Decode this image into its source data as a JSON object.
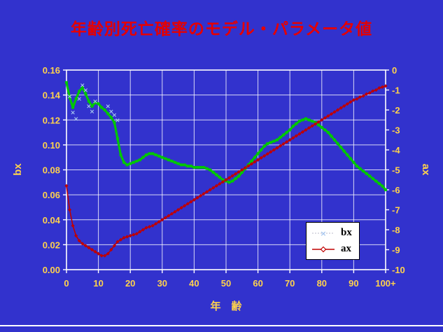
{
  "chart_data": {
    "type": "line",
    "title": "年齢別死亡確率のモデル・パラメータ値",
    "xlabel": "年　齢",
    "ylabel_left": "bx",
    "ylabel_right": "ax",
    "x_range": [
      0,
      100
    ],
    "y_left_range": [
      0,
      0.16
    ],
    "y_right_range": [
      -10,
      0
    ],
    "x_tick_labels": [
      "0",
      "10",
      "20",
      "30",
      "40",
      "50",
      "60",
      "70",
      "80",
      "90",
      "100+"
    ],
    "y_left_tick_labels": [
      "0.16",
      "0.14",
      "0.12",
      "0.10",
      "0.08",
      "0.06",
      "0.04",
      "0.02",
      "0.00"
    ],
    "y_right_tick_labels": [
      "0",
      "-1",
      "-2",
      "-3",
      "-4",
      "-5",
      "-6",
      "-7",
      "-8",
      "-9",
      "-10"
    ],
    "grid": true,
    "legend_position": "inside-bottom-right",
    "legend": [
      {
        "label": "bx"
      },
      {
        "label": "ax"
      }
    ],
    "colors": {
      "background": "#3232cd",
      "title": "#e60000",
      "labels": "#ffd24d",
      "grid": "#ffffff",
      "bx": "#00c800",
      "bx_marker": "#a8c8f0",
      "ax": "#c00000",
      "legend_bg": "#ffffff",
      "legend_border": "#000000"
    },
    "series": [
      {
        "name": "bx",
        "axis": "left",
        "marker": "square",
        "x_start": 0,
        "x_step": 1,
        "values": [
          0.15,
          0.138,
          0.13,
          0.137,
          0.143,
          0.146,
          0.141,
          0.135,
          0.131,
          0.134,
          0.133,
          0.13,
          0.128,
          0.125,
          0.122,
          0.118,
          0.105,
          0.092,
          0.086,
          0.084,
          0.085,
          0.086,
          0.087,
          0.088,
          0.09,
          0.092,
          0.093,
          0.093,
          0.092,
          0.091,
          0.09,
          0.089,
          0.088,
          0.087,
          0.086,
          0.085,
          0.084,
          0.084,
          0.083,
          0.083,
          0.082,
          0.082,
          0.082,
          0.082,
          0.081,
          0.08,
          0.078,
          0.076,
          0.074,
          0.072,
          0.071,
          0.07,
          0.071,
          0.073,
          0.075,
          0.078,
          0.081,
          0.084,
          0.087,
          0.09,
          0.093,
          0.096,
          0.099,
          0.101,
          0.102,
          0.103,
          0.104,
          0.106,
          0.108,
          0.11,
          0.112,
          0.115,
          0.117,
          0.119,
          0.12,
          0.121,
          0.12,
          0.119,
          0.118,
          0.116,
          0.114,
          0.112,
          0.11,
          0.107,
          0.104,
          0.101,
          0.098,
          0.095,
          0.092,
          0.089,
          0.086,
          0.083,
          0.081,
          0.079,
          0.077,
          0.075,
          0.073,
          0.071,
          0.069,
          0.067,
          0.064
        ]
      },
      {
        "name": "ax",
        "axis": "right",
        "marker": "diamond",
        "x_start": 0,
        "x_step": 1,
        "values": [
          -5.8,
          -7.0,
          -7.8,
          -8.3,
          -8.55,
          -8.7,
          -8.8,
          -8.9,
          -9.0,
          -9.1,
          -9.2,
          -9.3,
          -9.3,
          -9.2,
          -9.0,
          -8.8,
          -8.6,
          -8.5,
          -8.4,
          -8.35,
          -8.3,
          -8.25,
          -8.2,
          -8.1,
          -8.0,
          -7.9,
          -7.85,
          -7.8,
          -7.7,
          -7.6,
          -7.5,
          -7.4,
          -7.3,
          -7.2,
          -7.1,
          -7.0,
          -6.9,
          -6.8,
          -6.7,
          -6.6,
          -6.5,
          -6.4,
          -6.3,
          -6.2,
          -6.1,
          -6.0,
          -5.9,
          -5.8,
          -5.7,
          -5.6,
          -5.5,
          -5.4,
          -5.3,
          -5.2,
          -5.1,
          -5.0,
          -4.9,
          -4.8,
          -4.7,
          -4.6,
          -4.5,
          -4.4,
          -4.3,
          -4.2,
          -4.1,
          -4.0,
          -3.9,
          -3.8,
          -3.7,
          -3.6,
          -3.5,
          -3.4,
          -3.3,
          -3.2,
          -3.1,
          -3.0,
          -2.9,
          -2.8,
          -2.7,
          -2.6,
          -2.5,
          -2.4,
          -2.3,
          -2.2,
          -2.1,
          -2.0,
          -1.9,
          -1.8,
          -1.7,
          -1.6,
          -1.5,
          -1.45,
          -1.35,
          -1.3,
          -1.2,
          -1.15,
          -1.05,
          -1.0,
          -0.9,
          -0.85,
          -0.8
        ]
      }
    ],
    "bx_scatter_markers": [
      {
        "age": 1,
        "value": 0.139
      },
      {
        "age": 2,
        "value": 0.126
      },
      {
        "age": 3,
        "value": 0.121
      },
      {
        "age": 4,
        "value": 0.137
      },
      {
        "age": 5,
        "value": 0.148
      },
      {
        "age": 6,
        "value": 0.144
      },
      {
        "age": 7,
        "value": 0.131
      },
      {
        "age": 8,
        "value": 0.127
      },
      {
        "age": 9,
        "value": 0.135
      },
      {
        "age": 13,
        "value": 0.131
      },
      {
        "age": 14,
        "value": 0.127
      },
      {
        "age": 15,
        "value": 0.124
      },
      {
        "age": 16,
        "value": 0.12
      }
    ]
  }
}
